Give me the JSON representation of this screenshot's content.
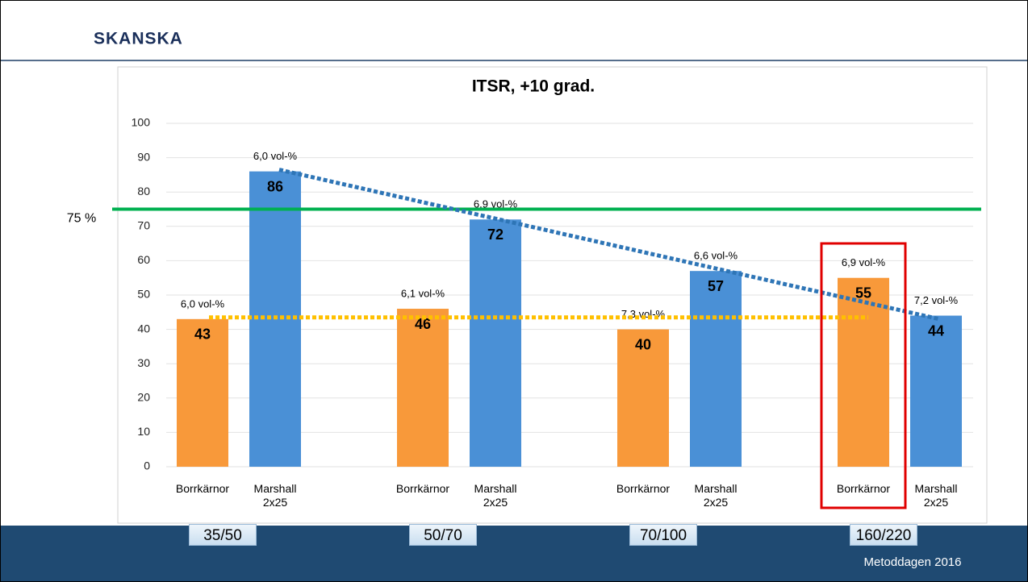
{
  "header": {
    "logo": "SKANSKA"
  },
  "footer": {
    "text": "Metoddagen 2016"
  },
  "chart_data": {
    "type": "bar",
    "title": "ITSR, +10 grad.",
    "categories": [
      "Borrkärnor",
      "Marshall 2x25",
      "Borrkärnor",
      "Marshall 2x25",
      "Borrkärnor",
      "Marshall 2x25",
      "Borrkärnor",
      "Marshall 2x25"
    ],
    "groups": [
      "35/50",
      "50/70",
      "70/100",
      "160/220"
    ],
    "values": [
      43,
      86,
      46,
      72,
      40,
      57,
      55,
      44
    ],
    "colors": [
      "#f8993a",
      "#4a90d6",
      "#f8993a",
      "#4a90d6",
      "#f8993a",
      "#4a90d6",
      "#f8993a",
      "#4a90d6"
    ],
    "annotations": [
      "6,0 vol-%",
      "6,0 vol-%",
      "6,1 vol-%",
      "6,9 vol-%",
      "7,3 vol-%",
      "6,6 vol-%",
      "6,9 vol-%",
      "7,2 vol-%"
    ],
    "ylim": [
      0,
      100
    ],
    "yticks": [
      0,
      10,
      20,
      30,
      40,
      50,
      60,
      70,
      80,
      90,
      100
    ],
    "grid": true,
    "reference_lines": [
      {
        "value": 75,
        "label": "75 %",
        "color": "#00b050"
      },
      {
        "value": 43.5,
        "color": "#ffc000"
      }
    ],
    "trendline": {
      "color": "#2e75b6",
      "values": [
        86.5,
        43
      ]
    }
  }
}
